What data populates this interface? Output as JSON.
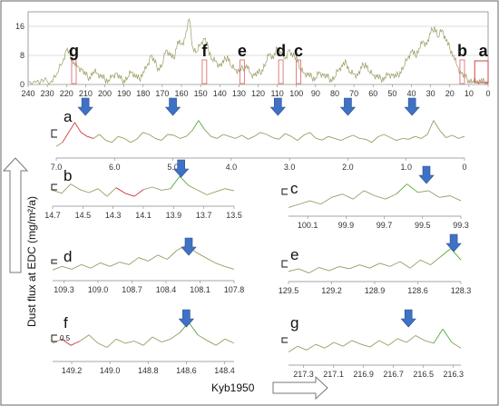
{
  "figure": {
    "ylabel": "Dust flux at EDC  (mg/m²/a)",
    "xlabel": "Kyb1950",
    "scale_label": "0.5"
  },
  "colors": {
    "series": "#9b9b64",
    "red_segment": "#cc3333",
    "green_segment": "#55aa33",
    "marker_box": "#e08080",
    "arrow": "#3f72c4",
    "axis": "#888888"
  },
  "chart_data": [
    {
      "id": "overview",
      "type": "line",
      "xlim": [
        240,
        0
      ],
      "ylim": [
        0,
        20
      ],
      "x_ticks": [
        240,
        230,
        220,
        210,
        200,
        190,
        180,
        170,
        160,
        150,
        140,
        130,
        120,
        110,
        100,
        90,
        80,
        70,
        60,
        50,
        40,
        30,
        20,
        10,
        0
      ],
      "y_ticks": [
        0,
        8,
        16
      ],
      "grid": true,
      "x": [
        240,
        236,
        232,
        228,
        225,
        222,
        220,
        218,
        216,
        214,
        212,
        210,
        208,
        206,
        204,
        202,
        200,
        198,
        196,
        194,
        192,
        190,
        188,
        186,
        184,
        182,
        180,
        178,
        176,
        174,
        172,
        170,
        168,
        166,
        164,
        162,
        160,
        158,
        156,
        154,
        152,
        150,
        148,
        146,
        144,
        142,
        140,
        138,
        136,
        134,
        132,
        130,
        128,
        126,
        124,
        122,
        120,
        118,
        116,
        114,
        112,
        110,
        108,
        106,
        104,
        102,
        100,
        98,
        96,
        94,
        92,
        90,
        88,
        86,
        84,
        82,
        80,
        78,
        76,
        74,
        72,
        70,
        68,
        66,
        64,
        62,
        60,
        58,
        56,
        54,
        52,
        50,
        48,
        46,
        44,
        42,
        40,
        38,
        36,
        34,
        32,
        30,
        28,
        26,
        24,
        22,
        20,
        18,
        16,
        14,
        12,
        10,
        8,
        6,
        4,
        2,
        0
      ],
      "values": [
        0.8,
        0.6,
        0.7,
        1.0,
        3.0,
        6.0,
        9.5,
        8.0,
        6.0,
        5.0,
        4.0,
        2.5,
        2.0,
        3.5,
        3.0,
        2.0,
        1.5,
        1.2,
        2.5,
        3.0,
        1.5,
        1.2,
        2.0,
        3.5,
        2.0,
        1.5,
        3.5,
        5.0,
        8.0,
        6.0,
        4.5,
        5.5,
        9.5,
        8.0,
        7.0,
        12.0,
        11.0,
        13.0,
        18.0,
        10.0,
        9.0,
        11.0,
        12.5,
        10.0,
        7.0,
        6.5,
        5.0,
        6.0,
        8.0,
        5.0,
        4.0,
        3.5,
        4.5,
        5.5,
        3.0,
        2.5,
        3.0,
        4.0,
        6.0,
        8.5,
        7.0,
        10.0,
        9.0,
        7.0,
        9.5,
        7.5,
        8.0,
        4.0,
        3.0,
        2.5,
        2.0,
        1.8,
        3.5,
        2.5,
        2.0,
        1.5,
        2.0,
        4.0,
        5.0,
        6.0,
        3.5,
        3.0,
        2.5,
        4.5,
        6.0,
        3.5,
        2.5,
        2.0,
        1.5,
        2.0,
        3.0,
        2.5,
        2.0,
        3.5,
        5.0,
        7.0,
        9.0,
        8.0,
        10.0,
        12.0,
        11.0,
        14.0,
        16.0,
        13.0,
        15.0,
        12.0,
        10.0,
        8.0,
        5.0,
        3.0,
        2.0,
        1.2,
        0.9,
        0.8,
        0.7,
        0.7,
        0.6
      ],
      "segments": [
        {
          "label": "g",
          "from": 217.3,
          "to": 216.3
        },
        {
          "label": "f",
          "from": 149.2,
          "to": 148.4
        },
        {
          "label": "e",
          "from": 129.5,
          "to": 128.3
        },
        {
          "label": "d",
          "from": 109.3,
          "to": 107.8
        },
        {
          "label": "c",
          "from": 100.1,
          "to": 99.3
        },
        {
          "label": "b",
          "from": 14.7,
          "to": 13.5
        },
        {
          "label": "a",
          "from": 7.0,
          "to": 0
        }
      ]
    },
    {
      "id": "a",
      "type": "line",
      "label": "a",
      "xlim": [
        7.0,
        0
      ],
      "x_ticks": [
        7.0,
        6.0,
        5.0,
        4.0,
        3.0,
        2.0,
        1.0,
        0
      ],
      "x_tick_labels": [
        "7.0",
        "6.0",
        "5.0",
        "4.0",
        "3.0",
        "2.0",
        "1.0",
        "0"
      ],
      "arrows": [
        6.5,
        5.0,
        3.2,
        2.0,
        0.9
      ],
      "values": [
        0.2,
        0.3,
        0.55,
        0.8,
        0.55,
        0.45,
        0.4,
        0.5,
        0.35,
        0.3,
        0.45,
        0.4,
        0.3,
        0.38,
        0.55,
        0.5,
        0.4,
        0.35,
        0.5,
        0.48,
        0.4,
        0.45,
        0.6,
        0.85,
        0.62,
        0.45,
        0.4,
        0.5,
        0.45,
        0.4,
        0.48,
        0.38,
        0.45,
        0.55,
        0.5,
        0.42,
        0.38,
        0.52,
        0.45,
        0.35,
        0.48,
        0.55,
        0.4,
        0.36,
        0.45,
        0.4,
        0.35,
        0.42,
        0.48,
        0.4,
        0.38,
        0.3,
        0.44,
        0.5,
        0.42,
        0.35,
        0.4,
        0.38,
        0.45,
        0.4,
        0.5,
        0.85,
        0.6,
        0.42,
        0.48,
        0.4,
        0.45
      ]
    },
    {
      "id": "b",
      "type": "line",
      "label": "b",
      "xlim": [
        14.7,
        13.5
      ],
      "x_ticks": [
        14.7,
        14.5,
        14.3,
        14.1,
        13.9,
        13.7,
        13.5
      ],
      "x_tick_labels": [
        "14.7",
        "14.5",
        "14.3",
        "14.1",
        "13.9",
        "13.7",
        "13.5"
      ],
      "arrows": [
        13.85
      ],
      "values": [
        0.4,
        0.3,
        0.6,
        0.42,
        0.32,
        0.45,
        0.2,
        0.48,
        0.3,
        0.2,
        0.42,
        0.5,
        0.4,
        0.45,
        0.85,
        0.55,
        0.4,
        0.25,
        0.35,
        0.45,
        0.38
      ]
    },
    {
      "id": "c",
      "type": "line",
      "label": "c",
      "xlim": [
        100.2,
        99.3
      ],
      "x_ticks": [
        100.1,
        99.9,
        99.7,
        99.5,
        99.3
      ],
      "x_tick_labels": [
        "100.1",
        "99.9",
        "99.7",
        "99.5",
        "99.3"
      ],
      "arrows": [
        99.48
      ],
      "values": [
        0.15,
        0.25,
        0.35,
        0.25,
        0.45,
        0.55,
        0.4,
        0.65,
        0.5,
        0.4,
        0.55,
        0.85,
        0.6,
        0.65,
        0.45,
        0.5,
        0.35
      ]
    },
    {
      "id": "d",
      "type": "line",
      "label": "d",
      "xlim": [
        109.4,
        107.8
      ],
      "x_ticks": [
        109.3,
        109.0,
        108.7,
        108.4,
        108.1,
        107.8
      ],
      "x_tick_labels": [
        "109.3",
        "109.0",
        "108.7",
        "108.4",
        "108.1",
        "107.8"
      ],
      "arrows": [
        108.2
      ],
      "values": [
        0.2,
        0.3,
        0.22,
        0.35,
        0.25,
        0.4,
        0.3,
        0.42,
        0.35,
        0.55,
        0.45,
        0.62,
        0.5,
        0.75,
        0.9,
        0.7,
        0.55,
        0.4,
        0.3,
        0.22
      ]
    },
    {
      "id": "e",
      "type": "line",
      "label": "e",
      "xlim": [
        129.5,
        128.3
      ],
      "x_ticks": [
        129.5,
        129.2,
        128.9,
        128.6,
        128.3
      ],
      "x_tick_labels": [
        "129.5",
        "129.2",
        "128.9",
        "128.6",
        "128.3"
      ],
      "arrows": [
        128.35
      ],
      "values": [
        0.2,
        0.28,
        0.15,
        0.32,
        0.22,
        0.35,
        0.28,
        0.4,
        0.3,
        0.45,
        0.35,
        0.5,
        0.3,
        0.55,
        0.4,
        0.65,
        0.9,
        0.55
      ]
    },
    {
      "id": "f",
      "type": "line",
      "label": "f",
      "scale_bar": "0.5",
      "xlim": [
        149.3,
        148.35
      ],
      "x_ticks": [
        149.2,
        149.0,
        148.8,
        148.6,
        148.4
      ],
      "x_tick_labels": [
        "149.2",
        "149.0",
        "148.8",
        "148.6",
        "148.4"
      ],
      "arrows": [
        148.6
      ],
      "values": [
        0.35,
        0.45,
        0.3,
        0.4,
        0.55,
        0.35,
        0.25,
        0.45,
        0.35,
        0.4,
        0.3,
        0.5,
        0.38,
        0.45,
        0.6,
        0.85,
        0.55,
        0.42,
        0.3,
        0.45,
        0.35
      ]
    },
    {
      "id": "g",
      "type": "line",
      "label": "g",
      "xlim": [
        217.4,
        216.25
      ],
      "x_ticks": [
        217.3,
        217.1,
        216.9,
        216.7,
        216.5,
        216.3
      ],
      "x_tick_labels": [
        "217.3",
        "217.1",
        "216.9",
        "216.7",
        "216.5",
        "216.3"
      ],
      "arrows": [
        216.6
      ],
      "values": [
        0.25,
        0.4,
        0.3,
        0.45,
        0.35,
        0.5,
        0.4,
        0.55,
        0.45,
        0.38,
        0.55,
        0.42,
        0.6,
        0.5,
        0.68,
        0.55,
        0.48,
        0.85,
        0.5,
        0.35
      ]
    }
  ]
}
